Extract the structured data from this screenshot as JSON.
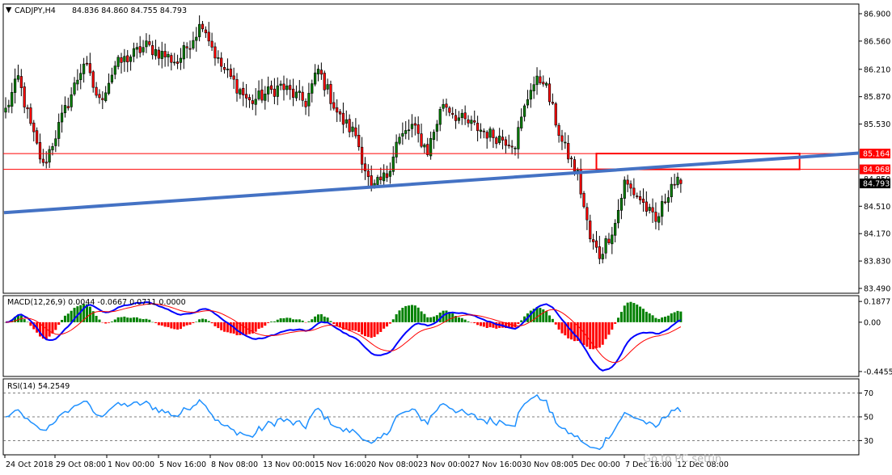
{
  "main_header": {
    "symbol": "CADJPY,H4",
    "ohlc": "84.836 84.860 84.755 84.793"
  },
  "macd_header": "MACD(12,26,9) 0.0044 -0.0667 0.0711 0.0000",
  "rsi_header": "RSI(14) 54.2549",
  "watermark": "Go to PC settin",
  "colors": {
    "bull": "#008000",
    "bear": "#ff0000",
    "trendline": "#4472c4",
    "hline": "#ff0000",
    "macd_line": "#0000ff",
    "signal_line": "#ff0000",
    "rsi_line": "#1e90ff"
  },
  "chart_data": [
    {
      "type": "candlestick",
      "symbol": "CADJPY",
      "timeframe": "H4",
      "y_ticks": [
        "86.900",
        "86.560",
        "86.210",
        "85.870",
        "85.530",
        "84.510",
        "84.170",
        "83.830",
        "83.490"
      ],
      "y_range": [
        83.43,
        87.02
      ],
      "x_ticks": [
        "24 Oct 2018",
        "29 Oct 08:00",
        "1 Nov 00:00",
        "5 Nov 16:00",
        "8 Nov 08:00",
        "13 Nov 00:00",
        "15 Nov 16:00",
        "20 Nov 08:00",
        "23 Nov 00:00",
        "27 Nov 16:00",
        "30 Nov 08:00",
        "5 Dec 00:00",
        "7 Dec 16:00",
        "12 Dec 08:00"
      ],
      "price_labels": [
        {
          "text": "85.164",
          "value": 85.164,
          "kind": "hline"
        },
        {
          "text": "84.968",
          "value": 84.968,
          "kind": "hline"
        },
        {
          "text": "84.850",
          "value": 84.85,
          "kind": "partial"
        },
        {
          "text": "84.793",
          "value": 84.793,
          "kind": "current"
        }
      ],
      "trendline": {
        "start_price": 84.43,
        "end_price": 85.17
      },
      "highlight_box": {
        "top": 85.164,
        "bottom": 84.968
      },
      "series": [
        {
          "name": "close",
          "waypoints": [
            [
              0,
              85.7
            ],
            [
              4,
              86.1
            ],
            [
              8,
              85.5
            ],
            [
              12,
              85.0
            ],
            [
              15,
              85.3
            ],
            [
              20,
              85.8
            ],
            [
              25,
              86.3
            ],
            [
              30,
              85.8
            ],
            [
              35,
              86.25
            ],
            [
              45,
              86.5
            ],
            [
              55,
              86.3
            ],
            [
              63,
              86.8
            ],
            [
              68,
              86.3
            ],
            [
              78,
              85.8
            ],
            [
              88,
              86.0
            ],
            [
              96,
              85.8
            ],
            [
              100,
              86.2
            ],
            [
              107,
              85.6
            ],
            [
              112,
              85.4
            ],
            [
              117,
              84.7
            ],
            [
              122,
              84.9
            ],
            [
              125,
              85.3
            ],
            [
              130,
              85.5
            ],
            [
              135,
              85.2
            ],
            [
              140,
              85.8
            ],
            [
              145,
              85.6
            ],
            [
              150,
              85.5
            ],
            [
              155,
              85.4
            ],
            [
              163,
              85.3
            ],
            [
              168,
              86.0
            ],
            [
              172,
              86.1
            ],
            [
              178,
              85.3
            ],
            [
              183,
              84.9
            ],
            [
              187,
              84.1
            ],
            [
              190,
              83.9
            ],
            [
              195,
              84.3
            ],
            [
              198,
              84.8
            ],
            [
              203,
              84.6
            ],
            [
              208,
              84.3
            ],
            [
              213,
              84.8
            ],
            [
              216,
              84.79
            ]
          ]
        }
      ]
    },
    {
      "type": "macd",
      "params": "12,26,9",
      "y_ticks": [
        "0.1877",
        "0.00",
        "-0.4455"
      ],
      "y_range": [
        -0.49,
        0.24
      ],
      "values": {
        "macd": 0.0044,
        "signal": -0.0667,
        "histogram": 0.0711
      }
    },
    {
      "type": "line",
      "indicator": "RSI",
      "period": 14,
      "y_ticks": [
        "70",
        "50",
        "30"
      ],
      "levels": [
        70,
        50,
        30
      ],
      "y_range": [
        18,
        82
      ],
      "value": 54.2549
    }
  ]
}
